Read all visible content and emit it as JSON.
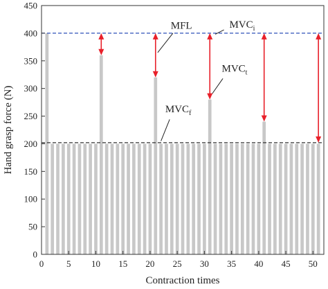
{
  "chart_data": {
    "type": "bar",
    "xlabel": "Contraction times",
    "ylabel": "Hand grasp force (N)",
    "xlim": [
      0,
      52
    ],
    "ylim": [
      0,
      450
    ],
    "xticks": [
      0,
      5,
      10,
      15,
      20,
      25,
      30,
      35,
      40,
      45,
      50
    ],
    "yticks": [
      0,
      50,
      100,
      150,
      200,
      250,
      300,
      350,
      400,
      450
    ],
    "grid": false,
    "bar_color": "#c8c8c8",
    "x": [
      1,
      2,
      3,
      4,
      5,
      6,
      7,
      8,
      9,
      10,
      11,
      12,
      13,
      14,
      15,
      16,
      17,
      18,
      19,
      20,
      21,
      22,
      23,
      24,
      25,
      26,
      27,
      28,
      29,
      30,
      31,
      32,
      33,
      34,
      35,
      36,
      37,
      38,
      39,
      40,
      41,
      42,
      43,
      44,
      45,
      46,
      47,
      48,
      49,
      50,
      51
    ],
    "values": [
      400,
      200,
      200,
      200,
      200,
      200,
      200,
      200,
      200,
      200,
      360,
      200,
      200,
      200,
      200,
      200,
      200,
      200,
      200,
      200,
      320,
      200,
      200,
      200,
      200,
      200,
      200,
      200,
      200,
      200,
      280,
      200,
      200,
      200,
      200,
      200,
      200,
      200,
      200,
      200,
      240,
      200,
      200,
      200,
      200,
      200,
      200,
      200,
      200,
      200,
      200
    ],
    "reference_lines": [
      {
        "y": 400,
        "style": "dashed",
        "color": "#2d4fb8"
      },
      {
        "y": 202,
        "style": "dashed",
        "color": "#333333"
      }
    ],
    "arrows": [
      {
        "x": 11,
        "y_from": 360,
        "y_to": 400,
        "color": "#e8202a"
      },
      {
        "x": 21,
        "y_from": 320,
        "y_to": 400,
        "color": "#e8202a"
      },
      {
        "x": 31,
        "y_from": 280,
        "y_to": 400,
        "color": "#e8202a"
      },
      {
        "x": 41,
        "y_from": 240,
        "y_to": 400,
        "color": "#e8202a"
      },
      {
        "x": 51,
        "y_from": 202,
        "y_to": 400,
        "color": "#e8202a"
      }
    ],
    "annotations": {
      "mfl": {
        "text": "MFL",
        "color": "#e8202a"
      },
      "mvc_i": {
        "text": "MVC",
        "sub": "i"
      },
      "mvc_t": {
        "text": "MVC",
        "sub": "t"
      },
      "mvc_f": {
        "text": "MVC",
        "sub": "f"
      }
    }
  }
}
